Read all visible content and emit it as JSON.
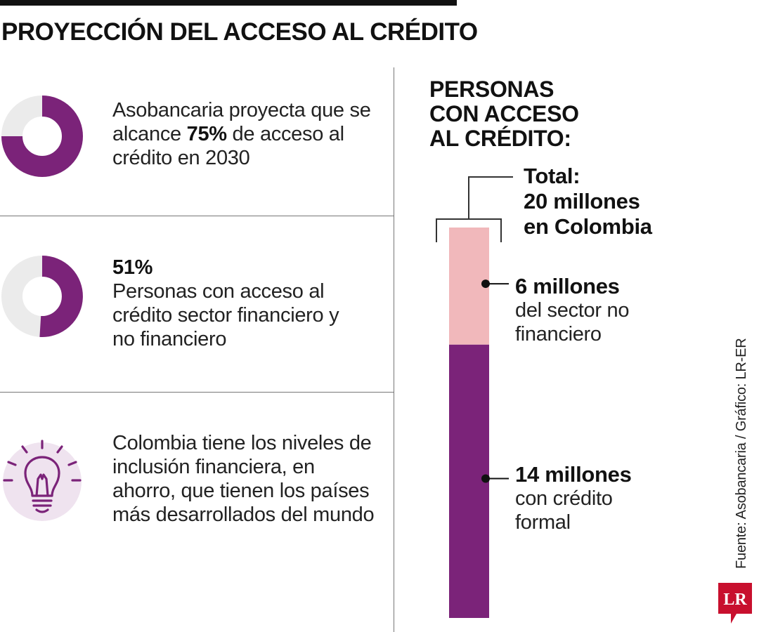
{
  "header": {
    "title": "PROYECCIÓN DEL ACCESO AL CRÉDITO"
  },
  "panels": [
    {
      "text_before": "Asobancaria proyecta que se alcance ",
      "highlight": "75%",
      "text_after": " de acceso al crédito en 2030",
      "percent": 75
    },
    {
      "highlight": "51%",
      "text": "Personas con acceso al crédito sector financiero y no financiero",
      "percent": 51
    },
    {
      "text": "Colombia tiene los niveles de inclusión financiera, en ahorro, que tienen los países más desarrollados del mundo",
      "icon": "lightbulb-icon"
    }
  ],
  "right": {
    "title_lines": [
      "PERSONAS",
      "CON ACCESO",
      "AL CRÉDITO:"
    ]
  },
  "chart_data": {
    "type": "bar",
    "stacked": true,
    "title": "PERSONAS CON ACCESO AL CRÉDITO:",
    "unit": "millones",
    "total": {
      "value": 20,
      "lines": [
        "Total:",
        "20 millones",
        "en Colombia"
      ]
    },
    "series": [
      {
        "name": "del sector no financiero",
        "value": 6,
        "value_label": "6 millones",
        "desc_lines": [
          "del sector no",
          "financiero"
        ],
        "color": "#f1b8bb"
      },
      {
        "name": "con crédito formal",
        "value": 14,
        "value_label": "14 millones",
        "desc_lines": [
          "con crédito",
          "formal"
        ],
        "color": "#7b2379"
      }
    ]
  },
  "donut": {
    "filled_color": "#7b2379",
    "empty_color": "#ebebeb"
  },
  "bulb": {
    "circle_color": "#efe3ef",
    "stroke_color": "#7b2379"
  },
  "source": "Fuente: Asobancaria / Gráfico: LR-ER",
  "logo": {
    "text": "LR",
    "color": "#c8102e"
  }
}
